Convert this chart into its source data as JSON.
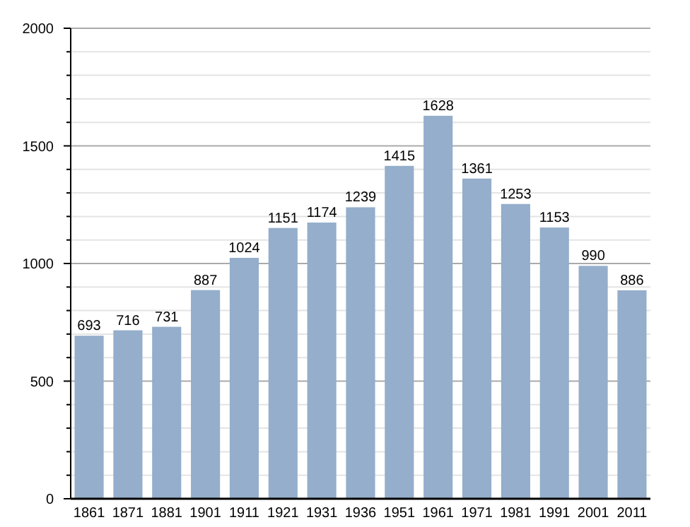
{
  "chart_data": {
    "type": "bar",
    "categories": [
      "1861",
      "1871",
      "1881",
      "1901",
      "1911",
      "1921",
      "1931",
      "1936",
      "1951",
      "1961",
      "1971",
      "1981",
      "1991",
      "2001",
      "2011"
    ],
    "values": [
      693,
      716,
      731,
      887,
      1024,
      1151,
      1174,
      1239,
      1415,
      1628,
      1361,
      1253,
      1153,
      990,
      886
    ],
    "color": "#94aecb",
    "ylim": [
      0,
      2000
    ],
    "yticks": [
      0,
      {
        "value": 100,
        "label": null
      },
      {
        "value": 200,
        "label": null
      },
      {
        "value": 300,
        "label": null
      },
      {
        "value": 400,
        "label": null
      },
      500,
      {
        "value": 600,
        "label": null
      },
      {
        "value": 700,
        "label": null
      },
      {
        "value": 800,
        "label": null
      },
      {
        "value": 900,
        "label": null
      },
      1000,
      {
        "value": 1100,
        "label": null
      },
      {
        "value": 1200,
        "label": null
      },
      {
        "value": 1300,
        "label": null
      },
      {
        "value": 1400,
        "label": null
      },
      1500,
      {
        "value": 1600,
        "label": null
      },
      {
        "value": 1700,
        "label": null
      },
      {
        "value": 1800,
        "label": null
      },
      {
        "value": 1900,
        "label": null
      },
      2000
    ],
    "grid": true,
    "data_labels": true
  }
}
